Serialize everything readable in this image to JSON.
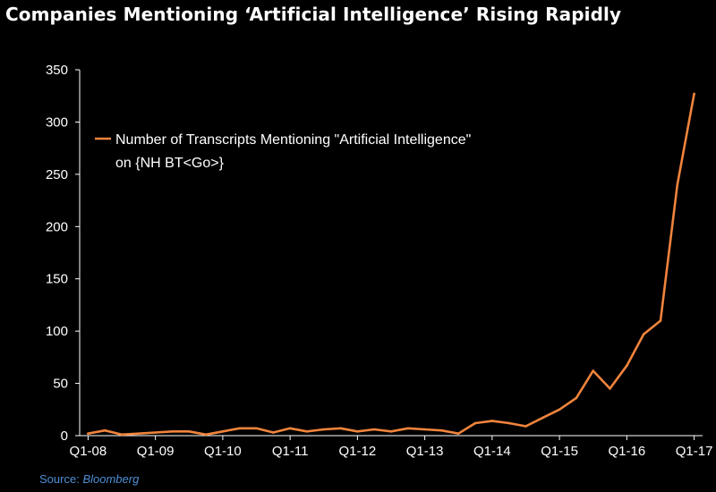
{
  "header": {
    "title": "Companies Mentioning ‘Artificial Intelligence’ Rising Rapidly"
  },
  "footer": {
    "source_label": "Source:",
    "source_name": "Bloomberg"
  },
  "colors": {
    "background": "#000000",
    "series_line": "#f0843c",
    "axis": "#ffffff",
    "text": "#ffffff",
    "source_text": "#4f8fd6"
  },
  "chart_data": {
    "type": "line",
    "title": "Companies Mentioning ‘Artificial Intelligence’ Rising Rapidly",
    "xlabel": "",
    "ylabel": "",
    "ylim": [
      0,
      350
    ],
    "yticks": [
      0,
      50,
      100,
      150,
      200,
      250,
      300,
      350
    ],
    "xtick_labels": [
      "Q1-08",
      "Q1-09",
      "Q1-10",
      "Q1-11",
      "Q1-12",
      "Q1-13",
      "Q1-14",
      "Q1-15",
      "Q1-16",
      "Q1-17"
    ],
    "grid": false,
    "legend_position": "upper-left",
    "legend_lines": [
      "Number of Transcripts Mentioning \"Artificial Intelligence\"",
      "on {NH BT<Go>}"
    ],
    "x": [
      "Q1-08",
      "Q2-08",
      "Q3-08",
      "Q4-08",
      "Q1-09",
      "Q2-09",
      "Q3-09",
      "Q4-09",
      "Q1-10",
      "Q2-10",
      "Q3-10",
      "Q4-10",
      "Q1-11",
      "Q2-11",
      "Q3-11",
      "Q4-11",
      "Q1-12",
      "Q2-12",
      "Q3-12",
      "Q4-12",
      "Q1-13",
      "Q2-13",
      "Q3-13",
      "Q4-13",
      "Q1-14",
      "Q2-14",
      "Q3-14",
      "Q4-14",
      "Q1-15",
      "Q2-15",
      "Q3-15",
      "Q4-15",
      "Q1-16",
      "Q2-16",
      "Q3-16",
      "Q4-16",
      "Q1-17"
    ],
    "series": [
      {
        "name": "Number of Transcripts Mentioning \"Artificial Intelligence\" on {NH BT<Go>}",
        "values": [
          2,
          5,
          1,
          2,
          3,
          4,
          4,
          1,
          4,
          7,
          7,
          3,
          7,
          4,
          6,
          7,
          4,
          6,
          4,
          7,
          6,
          5,
          2,
          12,
          14,
          12,
          9,
          17,
          25,
          36,
          62,
          45,
          67,
          97,
          110,
          240,
          327
        ]
      }
    ]
  }
}
